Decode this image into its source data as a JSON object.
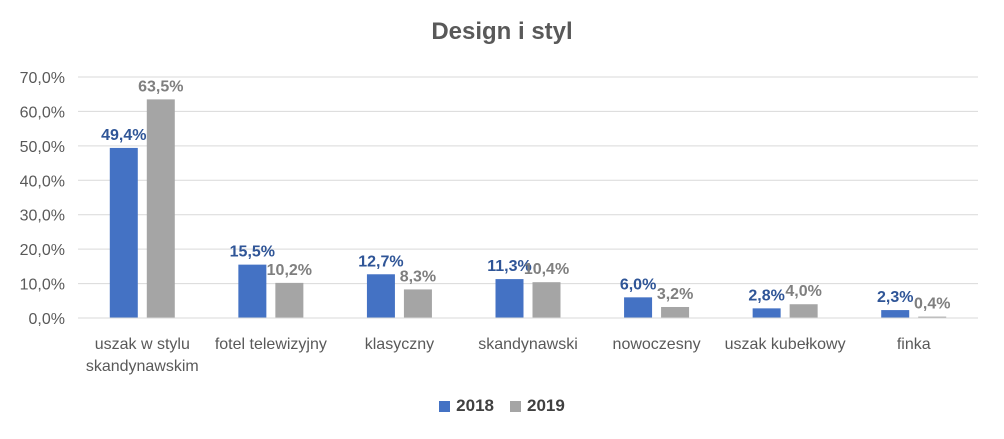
{
  "chart_data": {
    "type": "bar",
    "title": "Design i styl",
    "categories": [
      [
        "uszak w stylu",
        "skandynawskim"
      ],
      [
        "fotel telewizyjny"
      ],
      [
        "klasyczny"
      ],
      [
        "skandynawski"
      ],
      [
        "nowoczesny"
      ],
      [
        "uszak kubełkowy"
      ],
      [
        "finka"
      ]
    ],
    "series": [
      {
        "name": "2018",
        "color": "#4472C4",
        "label_color": "#2F5597",
        "values": [
          49.4,
          15.5,
          12.7,
          11.3,
          6.0,
          2.8,
          2.3
        ],
        "labels": [
          "49,4%",
          "15,5%",
          "12,7%",
          "11,3%",
          "6,0%",
          "2,8%",
          "2,3%"
        ]
      },
      {
        "name": "2019",
        "color": "#A5A5A5",
        "label_color": "#7F7F7F",
        "values": [
          63.5,
          10.2,
          8.3,
          10.4,
          3.2,
          4.0,
          0.4
        ],
        "labels": [
          "63,5%",
          "10,2%",
          "8,3%",
          "10,4%",
          "3,2%",
          "4,0%",
          "0,4%"
        ]
      }
    ],
    "yticks": [
      "0,0%",
      "10,0%",
      "20,0%",
      "30,0%",
      "40,0%",
      "50,0%",
      "60,0%",
      "70,0%"
    ],
    "ylim": [
      0,
      70
    ],
    "grid": true,
    "legend": "bottom"
  }
}
